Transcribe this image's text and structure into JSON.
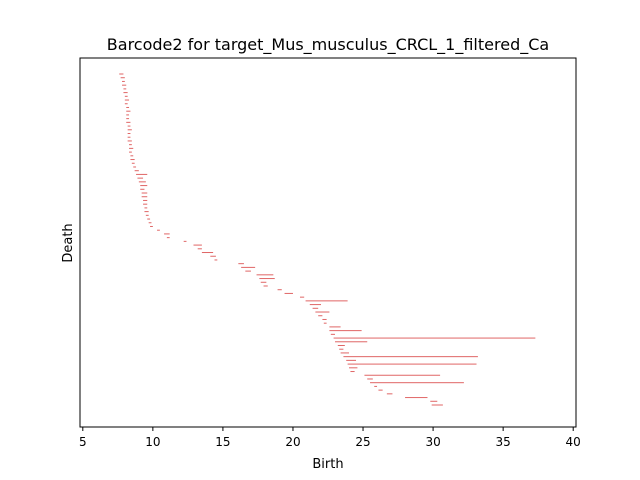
{
  "chart_data": {
    "type": "barcode",
    "title": "Barcode2 for target_Mus_musculus_CRCL_1_filtered_Ca",
    "xlabel": "Birth",
    "ylabel": "Death",
    "xlim": [
      4.8,
      40.2
    ],
    "x_ticks": [
      5,
      10,
      15,
      20,
      25,
      30,
      35,
      40
    ],
    "y_ticks": [],
    "bar_color": "#e06666",
    "bars": [
      {
        "birth": 7.6,
        "death": 7.9
      },
      {
        "birth": 7.7,
        "death": 8.0
      },
      {
        "birth": 7.8,
        "death": 8.0
      },
      {
        "birth": 7.8,
        "death": 8.1
      },
      {
        "birth": 7.9,
        "death": 8.1
      },
      {
        "birth": 7.9,
        "death": 8.2
      },
      {
        "birth": 8.0,
        "death": 8.2
      },
      {
        "birth": 8.0,
        "death": 8.3
      },
      {
        "birth": 8.0,
        "death": 8.2
      },
      {
        "birth": 8.1,
        "death": 8.3
      },
      {
        "birth": 8.1,
        "death": 8.4
      },
      {
        "birth": 8.1,
        "death": 8.3
      },
      {
        "birth": 8.1,
        "death": 8.3
      },
      {
        "birth": 8.1,
        "death": 8.4
      },
      {
        "birth": 8.2,
        "death": 8.4
      },
      {
        "birth": 8.2,
        "death": 8.5
      },
      {
        "birth": 8.2,
        "death": 8.4
      },
      {
        "birth": 8.2,
        "death": 8.4
      },
      {
        "birth": 8.2,
        "death": 8.5
      },
      {
        "birth": 8.3,
        "death": 8.5
      },
      {
        "birth": 8.3,
        "death": 8.6
      },
      {
        "birth": 8.3,
        "death": 8.5
      },
      {
        "birth": 8.4,
        "death": 8.6
      },
      {
        "birth": 8.4,
        "death": 8.7
      },
      {
        "birth": 8.5,
        "death": 8.7
      },
      {
        "birth": 8.6,
        "death": 8.8
      },
      {
        "birth": 8.7,
        "death": 9.0
      },
      {
        "birth": 8.8,
        "death": 9.6
      },
      {
        "birth": 8.9,
        "death": 9.3
      },
      {
        "birth": 9.0,
        "death": 9.5
      },
      {
        "birth": 9.1,
        "death": 9.6
      },
      {
        "birth": 9.1,
        "death": 9.4
      },
      {
        "birth": 9.2,
        "death": 9.6
      },
      {
        "birth": 9.2,
        "death": 9.6
      },
      {
        "birth": 9.3,
        "death": 9.6
      },
      {
        "birth": 9.3,
        "death": 9.6
      },
      {
        "birth": 9.4,
        "death": 9.6
      },
      {
        "birth": 9.4,
        "death": 9.7
      },
      {
        "birth": 9.5,
        "death": 9.7
      },
      {
        "birth": 9.6,
        "death": 9.8
      },
      {
        "birth": 9.7,
        "death": 9.9
      },
      {
        "birth": 9.8,
        "death": 10.0
      },
      {
        "birth": 10.3,
        "death": 10.5
      },
      {
        "birth": 10.8,
        "death": 11.2
      },
      {
        "birth": 11.0,
        "death": 11.2
      },
      {
        "birth": 12.2,
        "death": 12.4
      },
      {
        "birth": 12.9,
        "death": 13.5
      },
      {
        "birth": 13.2,
        "death": 13.5
      },
      {
        "birth": 13.5,
        "death": 14.3
      },
      {
        "birth": 14.1,
        "death": 14.5
      },
      {
        "birth": 14.4,
        "death": 14.6
      },
      {
        "birth": 16.1,
        "death": 16.5
      },
      {
        "birth": 16.3,
        "death": 17.3
      },
      {
        "birth": 16.6,
        "death": 17.0
      },
      {
        "birth": 17.4,
        "death": 18.6
      },
      {
        "birth": 17.6,
        "death": 18.7
      },
      {
        "birth": 17.7,
        "death": 18.1
      },
      {
        "birth": 17.9,
        "death": 18.2
      },
      {
        "birth": 18.9,
        "death": 19.2
      },
      {
        "birth": 19.4,
        "death": 20.0
      },
      {
        "birth": 20.5,
        "death": 20.8
      },
      {
        "birth": 20.9,
        "death": 23.9
      },
      {
        "birth": 21.2,
        "death": 22.0
      },
      {
        "birth": 21.4,
        "death": 21.8
      },
      {
        "birth": 21.6,
        "death": 22.6
      },
      {
        "birth": 21.8,
        "death": 22.1
      },
      {
        "birth": 22.1,
        "death": 22.4
      },
      {
        "birth": 22.2,
        "death": 22.4
      },
      {
        "birth": 22.6,
        "death": 23.4
      },
      {
        "birth": 22.6,
        "death": 24.9
      },
      {
        "birth": 22.7,
        "death": 23.0
      },
      {
        "birth": 22.9,
        "death": 37.3
      },
      {
        "birth": 23.0,
        "death": 25.3
      },
      {
        "birth": 23.2,
        "death": 23.7
      },
      {
        "birth": 23.3,
        "death": 23.6
      },
      {
        "birth": 23.4,
        "death": 24.0
      },
      {
        "birth": 23.6,
        "death": 33.2
      },
      {
        "birth": 23.8,
        "death": 24.5
      },
      {
        "birth": 23.9,
        "death": 33.1
      },
      {
        "birth": 24.0,
        "death": 24.6
      },
      {
        "birth": 24.1,
        "death": 24.4
      },
      {
        "birth": 25.1,
        "death": 30.5
      },
      {
        "birth": 25.3,
        "death": 25.7
      },
      {
        "birth": 25.5,
        "death": 32.2
      },
      {
        "birth": 25.8,
        "death": 26.0
      },
      {
        "birth": 26.1,
        "death": 26.4
      },
      {
        "birth": 26.7,
        "death": 27.1
      },
      {
        "birth": 28.0,
        "death": 29.6
      },
      {
        "birth": 29.8,
        "death": 30.3
      },
      {
        "birth": 29.9,
        "death": 30.7
      }
    ]
  }
}
